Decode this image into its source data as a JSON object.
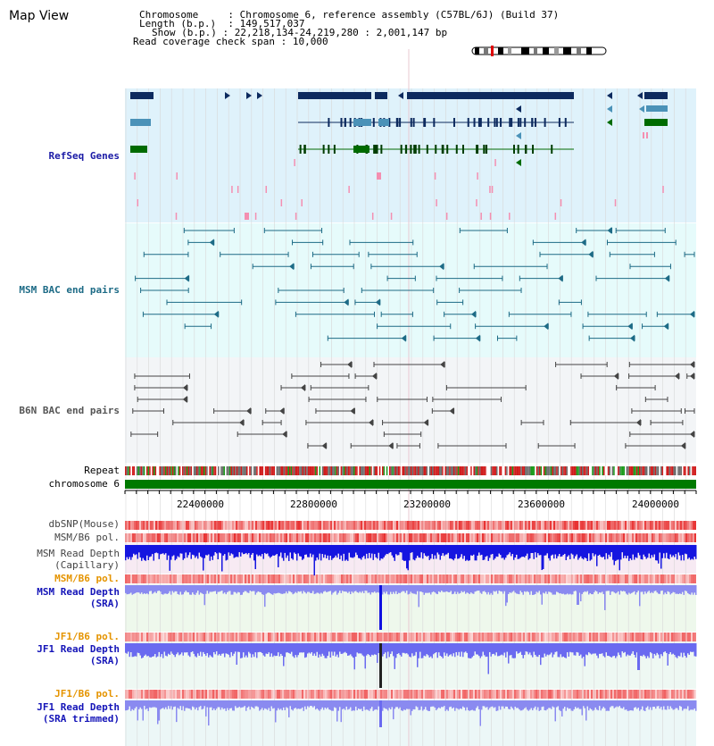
{
  "title": "Map View",
  "info": {
    "chromosome_label": "Chromosome",
    "chromosome_value": "Chromosome 6, reference assembly (C57BL/6J) (Build 37)",
    "length_label": "Length (b.p.)",
    "length_value": "149,517,037",
    "show_label": "Show (b.p.)",
    "show_value": "22,218,134-24,219,280 : 2,001,147 bp",
    "coverage_label": "Read coverage check span",
    "coverage_value": "10,000"
  },
  "tracks": {
    "refseq": "RefSeq Genes",
    "msm_bac": "MSM BAC end pairs",
    "b6n_bac": "B6N BAC end pairs",
    "repeat": "Repeat",
    "chromosome": "chromosome 6",
    "dbsnp": "dbSNP(Mouse)",
    "msm_b6_pol_1": "MSM/B6 pol.",
    "msm_depth_cap_1": "MSM Read Depth",
    "msm_depth_cap_2": "(Capillary)",
    "msm_b6_pol_2": "MSM/B6 pol.",
    "msm_depth_sra_1": "MSM Read Depth",
    "msm_depth_sra_2": "(SRA)",
    "jf1_b6_pol_1": "JF1/B6 pol.",
    "jf1_depth_sra_1": "JF1 Read Depth",
    "jf1_depth_sra_2": "(SRA)",
    "jf1_b6_pol_2": "JF1/B6 pol.",
    "jf1_depth_trim_1": "JF1 Read Depth",
    "jf1_depth_trim_2": "(SRA trimmed)"
  },
  "axis": {
    "ticks": [
      "22400000",
      "22800000",
      "23200000",
      "23600000",
      "24000000"
    ]
  },
  "colors": {
    "refseq_bg": "#dff2fb",
    "msm_bg": "#e6fbfb",
    "b6n_bg": "#f3f5f7",
    "gene_dark": "#0d2a5e",
    "gene_mid": "#4b92b8",
    "gene_green": "#006b00",
    "msm_line": "#1d6b86",
    "b6n_line": "#444444",
    "chrom_green": "#007a00",
    "depth_blue": "#1010e0",
    "depth_light": "#8080f0",
    "pol_red": "#e03030",
    "pol_orange": "#e59400"
  }
}
